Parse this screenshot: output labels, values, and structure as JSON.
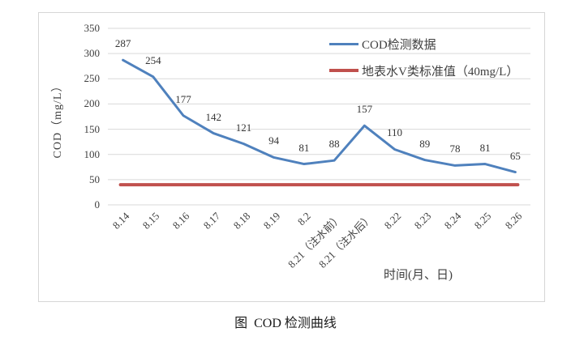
{
  "figure": {
    "caption": "图  COD 检测曲线"
  },
  "chart_data": {
    "type": "line",
    "title": "",
    "categories": [
      "8.14",
      "8.15",
      "8.16",
      "8.17",
      "8.18",
      "8.19",
      "8.2",
      "8.21（注水前）",
      "8.21（注水后）",
      "8.22",
      "8.23",
      "8.24",
      "8.25",
      "8.26"
    ],
    "series": [
      {
        "name": "COD检测数据",
        "color": "#4F81BD",
        "values": [
          287,
          254,
          177,
          142,
          121,
          94,
          81,
          88,
          157,
          110,
          89,
          78,
          81,
          65
        ],
        "data_labels": true
      },
      {
        "name": "地表水V类标准值（40mg/L）",
        "color": "#C0504D",
        "constant_value": 40
      }
    ],
    "xlabel": "时间(月、日)",
    "ylabel": "COD（mg/L）",
    "ylim": [
      0,
      350
    ],
    "yticks": [
      350,
      300,
      250,
      200,
      150,
      100,
      50,
      0
    ],
    "grid": true,
    "gridline_color": "#d9d9d9",
    "legend_position": "top-right"
  }
}
